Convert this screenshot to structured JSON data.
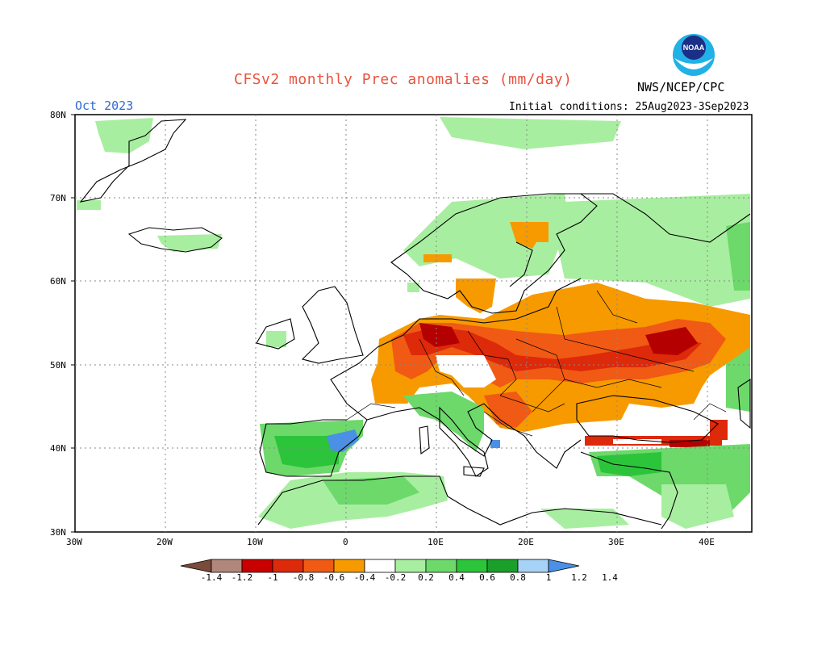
{
  "header": {
    "title": "CFSv2 monthly Prec anomalies (mm/day)",
    "agency": "NWS/NCEP/CPC",
    "month": "Oct 2023",
    "initial_conditions": "Initial conditions: 25Aug2023-3Sep2023",
    "logo_text": "NOAA"
  },
  "axes": {
    "lat_labels": [
      "80N",
      "70N",
      "60N",
      "50N",
      "40N",
      "30N"
    ],
    "lon_labels": [
      "30W",
      "20W",
      "10W",
      "0",
      "10E",
      "20E",
      "30E",
      "40E"
    ]
  },
  "legend": {
    "labels": [
      "-1.4",
      "-1.2",
      "-1",
      "-0.8",
      "-0.6",
      "-0.4",
      "-0.2",
      "0.2",
      "0.4",
      "0.6",
      "0.8",
      "1",
      "1.2",
      "1.4"
    ],
    "colors": [
      "#7a4a3a",
      "#b0877a",
      "#c80000",
      "#dc2a0a",
      "#f05a14",
      "#f79a00",
      "#ffffff",
      "#a8eea0",
      "#6cd96a",
      "#2cc43a",
      "#1aa02a",
      "#a6d2f5",
      "#4a90e6"
    ]
  },
  "colors": {
    "title": "#e8543f",
    "month": "#2f6bd3",
    "orange": "#f79a00",
    "redorange": "#f05a14",
    "red": "#dc2a0a",
    "darkred": "#b40000",
    "lightgreen": "#a8eea0",
    "green": "#6cd96a",
    "midgreen": "#2cc43a",
    "darkgreen": "#1aa02a",
    "blue": "#4a90e6"
  }
}
